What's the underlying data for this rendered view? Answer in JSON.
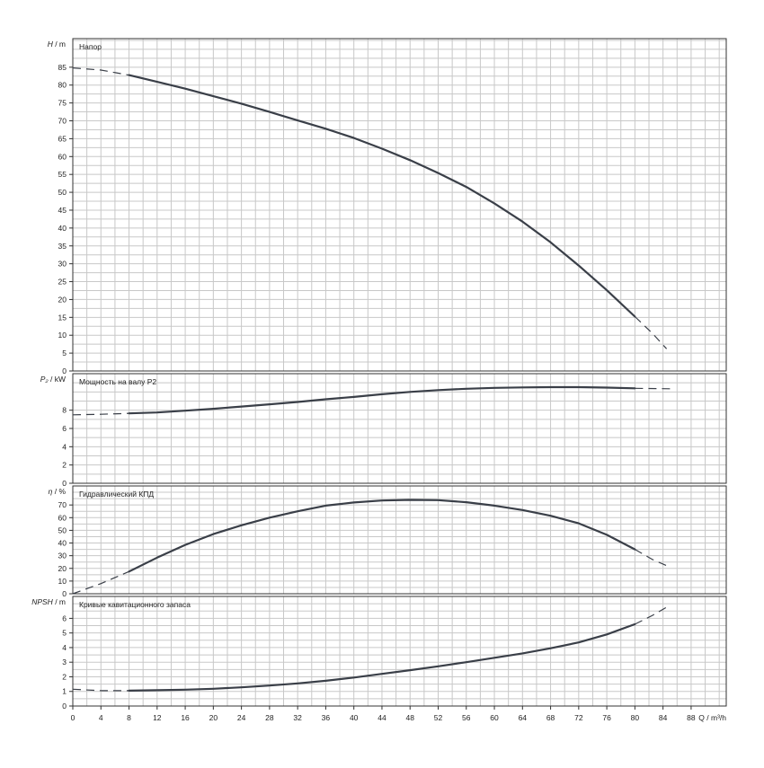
{
  "chart_data": {
    "type": "line",
    "x_axis": {
      "ticks": [
        "0",
        "4",
        "8",
        "12",
        "16",
        "20",
        "24",
        "28",
        "32",
        "36",
        "40",
        "44",
        "48",
        "52",
        "56",
        "60",
        "64",
        "68",
        "72",
        "76",
        "80",
        "84",
        "88"
      ],
      "label": "Q / m³/h",
      "xlim": [
        0,
        93
      ]
    },
    "panels": [
      {
        "id": "head",
        "title": "Напор",
        "ylabel_symbol": "H",
        "ylabel_unit": "/ m",
        "ylim": [
          0,
          93
        ],
        "ticks": [
          "0",
          "5",
          "10",
          "15",
          "20",
          "25",
          "30",
          "35",
          "40",
          "45",
          "50",
          "55",
          "60",
          "65",
          "70",
          "75",
          "80",
          "85"
        ],
        "dashed_before": [
          [
            0,
            84.8
          ],
          [
            4,
            84.2
          ],
          [
            8,
            82.8
          ]
        ],
        "solid": [
          [
            8,
            82.8
          ],
          [
            12,
            80.9
          ],
          [
            16,
            79.0
          ],
          [
            20,
            76.9
          ],
          [
            24,
            74.8
          ],
          [
            28,
            72.5
          ],
          [
            32,
            70.1
          ],
          [
            36,
            67.8
          ],
          [
            40,
            65.2
          ],
          [
            44,
            62.2
          ],
          [
            48,
            59.0
          ],
          [
            52,
            55.4
          ],
          [
            56,
            51.5
          ],
          [
            60,
            46.9
          ],
          [
            64,
            41.8
          ],
          [
            68,
            36.0
          ],
          [
            72,
            29.5
          ],
          [
            76,
            22.6
          ],
          [
            80,
            15.2
          ]
        ],
        "dashed_after": [
          [
            80,
            15.2
          ],
          [
            82.5,
            10.5
          ],
          [
            84.5,
            6.2
          ]
        ]
      },
      {
        "id": "power",
        "title": "Мощность на валу P2",
        "ylabel_symbol": "P₂",
        "ylabel_unit": "/ kW",
        "ylim": [
          0,
          12
        ],
        "ticks": [
          "0",
          "2",
          "4",
          "6",
          "8"
        ],
        "dashed_before": [
          [
            0,
            7.5
          ],
          [
            4,
            7.55
          ],
          [
            8,
            7.65
          ]
        ],
        "solid": [
          [
            8,
            7.65
          ],
          [
            12,
            7.75
          ],
          [
            16,
            7.95
          ],
          [
            20,
            8.15
          ],
          [
            24,
            8.4
          ],
          [
            28,
            8.65
          ],
          [
            32,
            8.9
          ],
          [
            36,
            9.2
          ],
          [
            40,
            9.45
          ],
          [
            44,
            9.75
          ],
          [
            48,
            10.0
          ],
          [
            52,
            10.2
          ],
          [
            56,
            10.35
          ],
          [
            60,
            10.45
          ],
          [
            64,
            10.5
          ],
          [
            68,
            10.52
          ],
          [
            72,
            10.52
          ],
          [
            76,
            10.48
          ],
          [
            80,
            10.4
          ]
        ],
        "dashed_after": [
          [
            80,
            10.4
          ],
          [
            85,
            10.35
          ]
        ]
      },
      {
        "id": "efficiency",
        "title": "Гидравлический КПД",
        "ylabel_symbol": "η",
        "ylabel_unit": "/ %",
        "ylim": [
          0,
          85
        ],
        "ticks": [
          "0",
          "10",
          "20",
          "30",
          "40",
          "50",
          "60",
          "70"
        ],
        "dashed_before": [
          [
            0,
            0
          ],
          [
            4,
            8
          ],
          [
            8,
            17.5
          ]
        ],
        "solid": [
          [
            8,
            17.5
          ],
          [
            12,
            28.5
          ],
          [
            16,
            38.5
          ],
          [
            20,
            47
          ],
          [
            24,
            54
          ],
          [
            28,
            60
          ],
          [
            32,
            65
          ],
          [
            36,
            69.5
          ],
          [
            40,
            72
          ],
          [
            44,
            73.5
          ],
          [
            48,
            74
          ],
          [
            52,
            73.8
          ],
          [
            56,
            72.2
          ],
          [
            60,
            69.5
          ],
          [
            64,
            66
          ],
          [
            68,
            61.5
          ],
          [
            72,
            55.5
          ],
          [
            76,
            46.5
          ],
          [
            80,
            35
          ]
        ],
        "dashed_after": [
          [
            80,
            35
          ],
          [
            82.5,
            27
          ],
          [
            85,
            21
          ]
        ]
      },
      {
        "id": "npsh",
        "title": "Кривые кавитационного запаса",
        "ylabel_symbol": "NPSH",
        "ylabel_unit": "/ m",
        "ylim": [
          0,
          7.5
        ],
        "ticks": [
          "0",
          "1",
          "2",
          "3",
          "4",
          "5",
          "6"
        ],
        "dashed_before": [
          [
            0,
            1.15
          ],
          [
            4,
            1.05
          ],
          [
            8,
            1.05
          ]
        ],
        "solid": [
          [
            8,
            1.05
          ],
          [
            12,
            1.08
          ],
          [
            16,
            1.12
          ],
          [
            20,
            1.18
          ],
          [
            24,
            1.28
          ],
          [
            28,
            1.4
          ],
          [
            32,
            1.55
          ],
          [
            36,
            1.73
          ],
          [
            40,
            1.95
          ],
          [
            44,
            2.2
          ],
          [
            48,
            2.45
          ],
          [
            52,
            2.72
          ],
          [
            56,
            3.0
          ],
          [
            60,
            3.3
          ],
          [
            64,
            3.6
          ],
          [
            68,
            3.95
          ],
          [
            72,
            4.35
          ],
          [
            76,
            4.9
          ],
          [
            80,
            5.6
          ]
        ],
        "dashed_after": [
          [
            80,
            5.6
          ],
          [
            82.5,
            6.2
          ],
          [
            85,
            6.9
          ]
        ]
      }
    ]
  }
}
